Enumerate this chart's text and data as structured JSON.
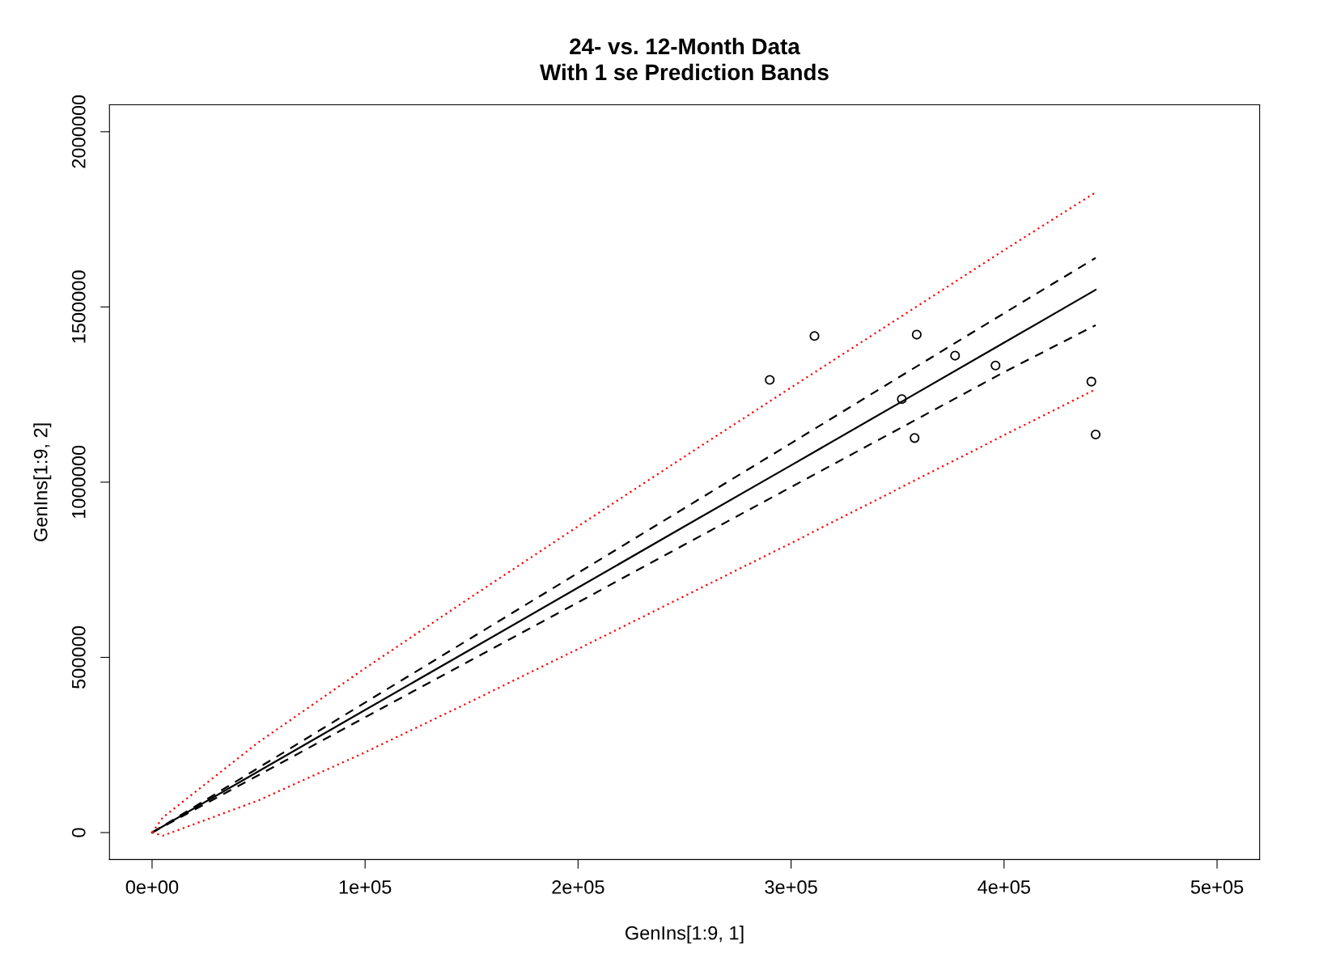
{
  "chart_data": {
    "type": "scatter",
    "title": "24- vs. 12-Month Data\nWith 1 se Prediction Bands",
    "xlabel": "GenIns[1:9, 1]",
    "ylabel": "GenIns[1:9, 2]",
    "xlim": [
      -20000,
      520000
    ],
    "ylim": [
      -77000,
      2077000
    ],
    "xticks": [
      {
        "value": 0,
        "label": "0e+00"
      },
      {
        "value": 100000,
        "label": "1e+05"
      },
      {
        "value": 200000,
        "label": "2e+05"
      },
      {
        "value": 300000,
        "label": "3e+05"
      },
      {
        "value": 400000,
        "label": "4e+05"
      },
      {
        "value": 500000,
        "label": "5e+05"
      }
    ],
    "yticks": [
      0,
      500000,
      1000000,
      1500000,
      2000000
    ],
    "grid": false,
    "legend": false,
    "series": [
      {
        "marker": "circle",
        "color": "#000000",
        "x": [
          290000,
          311000,
          359000,
          377000,
          352000,
          358000,
          396000,
          441000,
          443000
        ],
        "values": [
          1292000,
          1417000,
          1421000,
          1361000,
          1237000,
          1126000,
          1333000,
          1287000,
          1136000
        ]
      },
      {
        "type": "line",
        "line_style": "solid",
        "color": "#000000",
        "x": [
          0,
          50000,
          100000,
          150000,
          200000,
          250000,
          300000,
          350000,
          400000,
          443000
        ],
        "values": [
          0,
          175000,
          350000,
          524000,
          699000,
          874000,
          1048000,
          1223000,
          1398000,
          1549000
        ]
      },
      {
        "type": "line",
        "line_style": "dashed",
        "color": "#000000",
        "x": [
          0,
          50000,
          100000,
          150000,
          200000,
          250000,
          300000,
          350000,
          400000,
          443000
        ],
        "values": [
          0,
          185000,
          371000,
          556000,
          741000,
          926000,
          1111000,
          1297000,
          1482000,
          1640000
        ]
      },
      {
        "type": "line",
        "line_style": "dashed",
        "color": "#000000",
        "x": [
          0,
          50000,
          100000,
          150000,
          200000,
          250000,
          300000,
          350000,
          400000,
          443000
        ],
        "values": [
          0,
          164000,
          329000,
          493000,
          657000,
          822000,
          986000,
          1150000,
          1314000,
          1448000
        ]
      },
      {
        "type": "line",
        "line_style": "dotted",
        "color": "#ff0000",
        "x": [
          0,
          5000,
          50000,
          100000,
          150000,
          200000,
          250000,
          300000,
          350000,
          400000,
          443000
        ],
        "values": [
          0,
          43000,
          258000,
          469000,
          673000,
          874000,
          1073000,
          1270000,
          1466000,
          1662000,
          1827000
        ]
      },
      {
        "type": "line",
        "line_style": "dotted",
        "color": "#ff0000",
        "x": [
          0,
          5000,
          50000,
          100000,
          150000,
          200000,
          250000,
          300000,
          350000,
          400000,
          443000
        ],
        "values": [
          0,
          -9000,
          92000,
          229000,
          375000,
          524000,
          675000,
          826000,
          980000,
          1134000,
          1265000
        ]
      }
    ]
  }
}
